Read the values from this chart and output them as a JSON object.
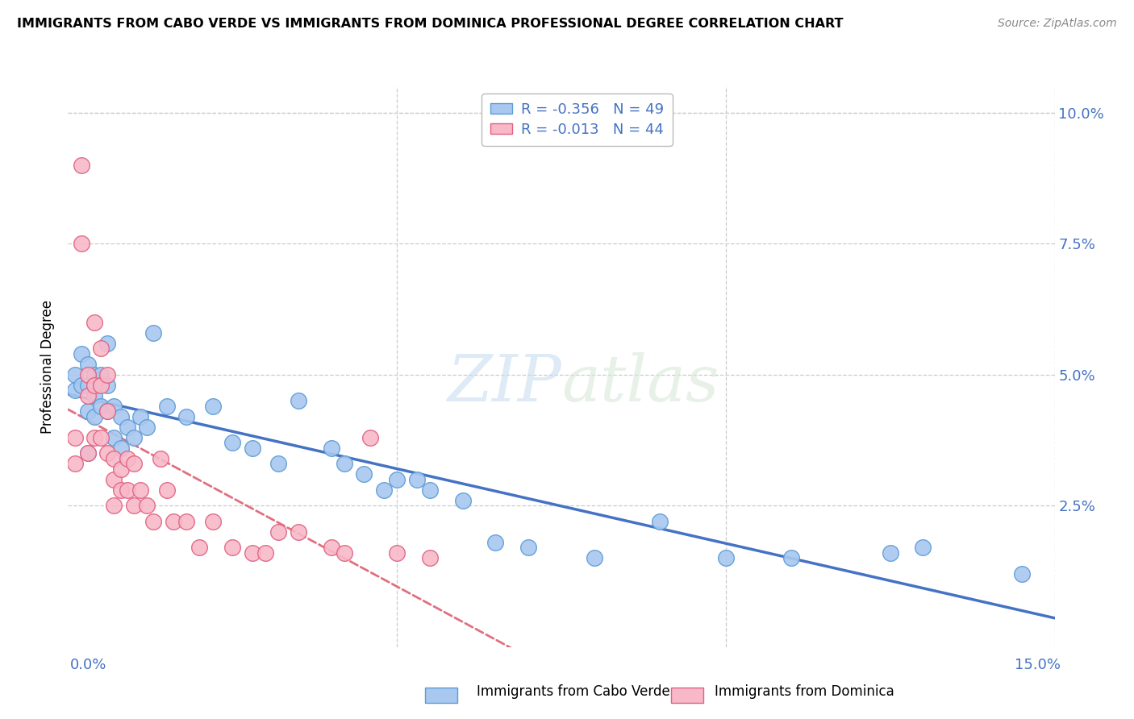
{
  "title": "IMMIGRANTS FROM CABO VERDE VS IMMIGRANTS FROM DOMINICA PROFESSIONAL DEGREE CORRELATION CHART",
  "source": "Source: ZipAtlas.com",
  "ylabel": "Professional Degree",
  "xlim": [
    0.0,
    0.15
  ],
  "ylim": [
    -0.002,
    0.105
  ],
  "watermark": "ZIPatlas",
  "cabo_verde_label": "Immigrants from Cabo Verde",
  "dominica_label": "Immigrants from Dominica",
  "cabo_verde_R": -0.356,
  "cabo_verde_N": 49,
  "dominica_R": -0.013,
  "dominica_N": 44,
  "cabo_verde_fill": "#A8C8F0",
  "cabo_verde_edge": "#5B9BD5",
  "dominica_fill": "#F8B8C8",
  "dominica_edge": "#E06080",
  "cabo_verde_line_color": "#4472C4",
  "dominica_line_color": "#E07080",
  "cabo_verde_x": [
    0.001,
    0.001,
    0.002,
    0.002,
    0.003,
    0.003,
    0.003,
    0.003,
    0.004,
    0.004,
    0.004,
    0.005,
    0.005,
    0.006,
    0.006,
    0.006,
    0.007,
    0.007,
    0.008,
    0.008,
    0.009,
    0.01,
    0.011,
    0.012,
    0.013,
    0.015,
    0.018,
    0.022,
    0.025,
    0.028,
    0.032,
    0.035,
    0.04,
    0.042,
    0.045,
    0.048,
    0.05,
    0.053,
    0.055,
    0.06,
    0.065,
    0.07,
    0.08,
    0.09,
    0.1,
    0.11,
    0.125,
    0.13,
    0.145
  ],
  "cabo_verde_y": [
    0.05,
    0.047,
    0.054,
    0.048,
    0.052,
    0.048,
    0.043,
    0.035,
    0.05,
    0.046,
    0.042,
    0.05,
    0.044,
    0.056,
    0.048,
    0.043,
    0.044,
    0.038,
    0.042,
    0.036,
    0.04,
    0.038,
    0.042,
    0.04,
    0.058,
    0.044,
    0.042,
    0.044,
    0.037,
    0.036,
    0.033,
    0.045,
    0.036,
    0.033,
    0.031,
    0.028,
    0.03,
    0.03,
    0.028,
    0.026,
    0.018,
    0.017,
    0.015,
    0.022,
    0.015,
    0.015,
    0.016,
    0.017,
    0.012
  ],
  "dominica_x": [
    0.001,
    0.001,
    0.002,
    0.002,
    0.003,
    0.003,
    0.003,
    0.004,
    0.004,
    0.004,
    0.005,
    0.005,
    0.005,
    0.006,
    0.006,
    0.006,
    0.007,
    0.007,
    0.007,
    0.008,
    0.008,
    0.009,
    0.009,
    0.01,
    0.01,
    0.011,
    0.012,
    0.013,
    0.014,
    0.015,
    0.016,
    0.018,
    0.02,
    0.022,
    0.025,
    0.028,
    0.03,
    0.032,
    0.035,
    0.04,
    0.042,
    0.046,
    0.05,
    0.055
  ],
  "dominica_y": [
    0.038,
    0.033,
    0.09,
    0.075,
    0.05,
    0.046,
    0.035,
    0.06,
    0.048,
    0.038,
    0.055,
    0.048,
    0.038,
    0.05,
    0.043,
    0.035,
    0.034,
    0.03,
    0.025,
    0.032,
    0.028,
    0.034,
    0.028,
    0.033,
    0.025,
    0.028,
    0.025,
    0.022,
    0.034,
    0.028,
    0.022,
    0.022,
    0.017,
    0.022,
    0.017,
    0.016,
    0.016,
    0.02,
    0.02,
    0.017,
    0.016,
    0.038,
    0.016,
    0.015
  ]
}
